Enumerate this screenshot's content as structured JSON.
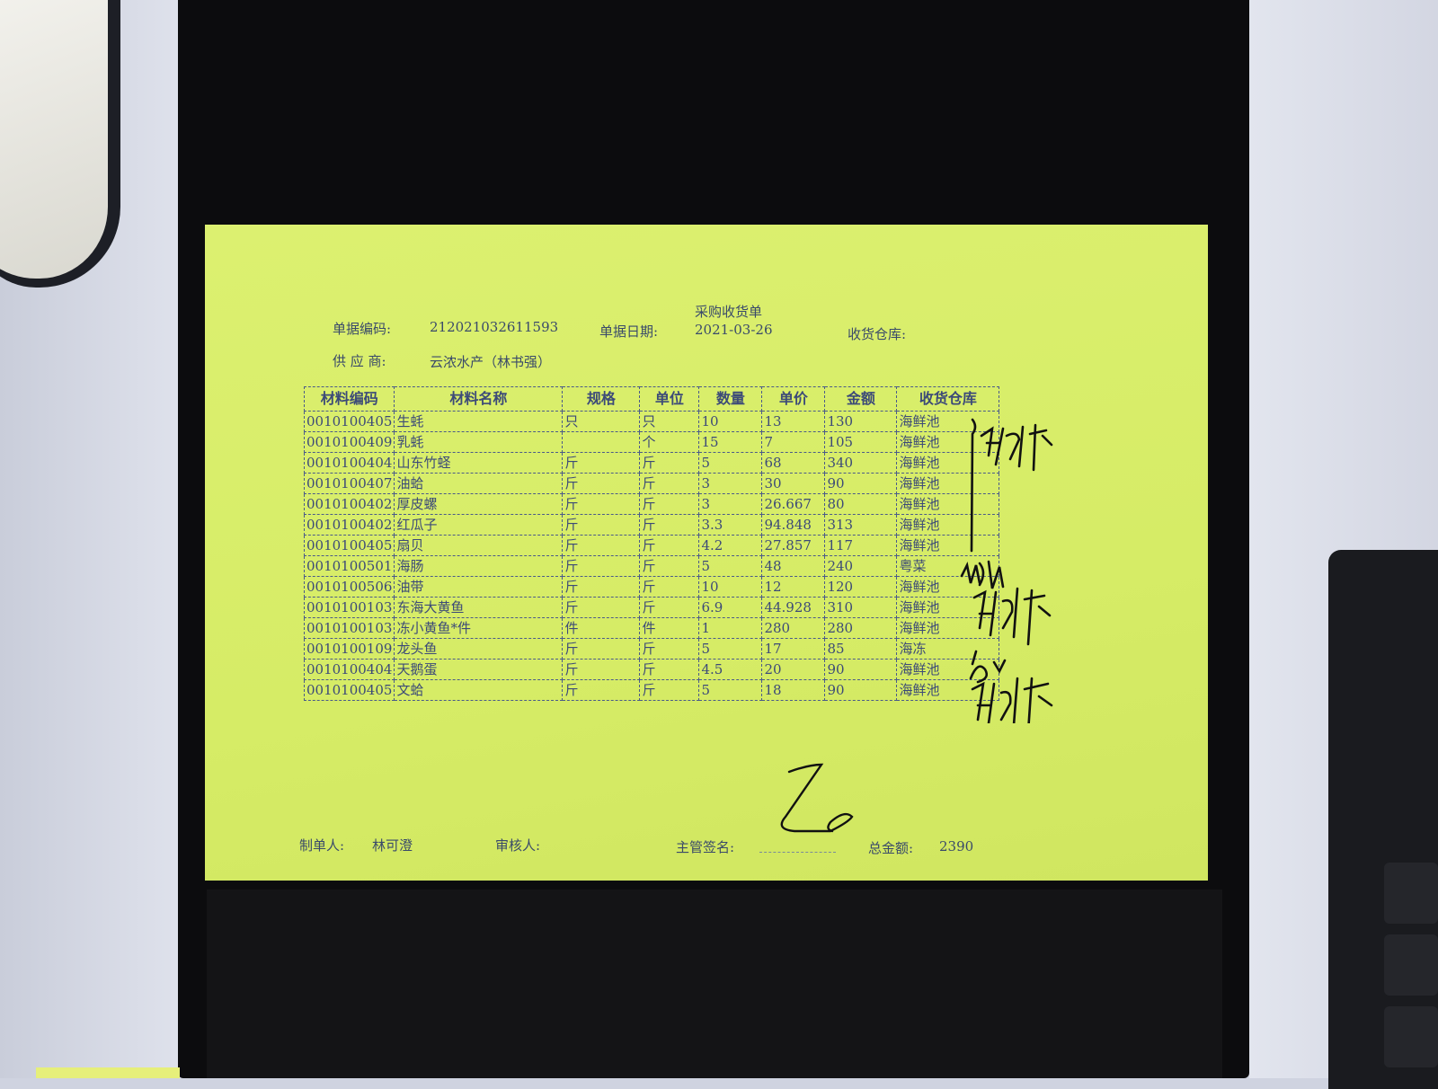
{
  "document": {
    "title": "采购收货单",
    "doc_no_label": "单据编码:",
    "doc_no": "212021032611593",
    "date_label": "单据日期:",
    "date": "2021-03-26",
    "warehouse_label": "收货仓库:",
    "supplier_label": "供 应 商:",
    "supplier": "云浓水产（林书强）",
    "columns": [
      "材料编码",
      "材料名称",
      "规格",
      "单位",
      "数量",
      "单价",
      "金额",
      "收货仓库"
    ],
    "rows": [
      [
        "0010100405",
        "生蚝",
        "只",
        "只",
        "10",
        "13",
        "130",
        "海鲜池"
      ],
      [
        "0010100409",
        "乳蚝",
        "",
        "个",
        "15",
        "7",
        "105",
        "海鲜池"
      ],
      [
        "0010100404",
        "山东竹蛏",
        "斤",
        "斤",
        "5",
        "68",
        "340",
        "海鲜池"
      ],
      [
        "0010100407",
        "油蛤",
        "斤",
        "斤",
        "3",
        "30",
        "90",
        "海鲜池"
      ],
      [
        "0010100402",
        "厚皮螺",
        "斤",
        "斤",
        "3",
        "26.667",
        "80",
        "海鲜池"
      ],
      [
        "0010100402",
        "红瓜子",
        "斤",
        "斤",
        "3.3",
        "94.848",
        "313",
        "海鲜池"
      ],
      [
        "0010100405",
        "扇贝",
        "斤",
        "斤",
        "4.2",
        "27.857",
        "117",
        "海鲜池"
      ],
      [
        "0010100501",
        "海肠",
        "斤",
        "斤",
        "5",
        "48",
        "240",
        "粤菜"
      ],
      [
        "0010100506",
        "油带",
        "斤",
        "斤",
        "10",
        "12",
        "120",
        "海鲜池"
      ],
      [
        "0010100103",
        "东海大黄鱼",
        "斤",
        "斤",
        "6.9",
        "44.928",
        "310",
        "海鲜池"
      ],
      [
        "0010100103",
        "冻小黄鱼*件",
        "件",
        "件",
        "1",
        "280",
        "280",
        "海鲜池"
      ],
      [
        "0010100109",
        "龙头鱼",
        "斤",
        "斤",
        "5",
        "17",
        "85",
        "海冻"
      ],
      [
        "0010100404",
        "天鹅蛋",
        "斤",
        "斤",
        "4.5",
        "20",
        "90",
        "海鲜池"
      ],
      [
        "0010100405",
        "文蛤",
        "斤",
        "斤",
        "5",
        "18",
        "90",
        "海鲜池"
      ]
    ],
    "maker_label": "制单人:",
    "maker": "林可澄",
    "reviewer_label": "审核人:",
    "supervisor_label": "主管签名:",
    "total_label": "总金额:",
    "total": "2390"
  },
  "colors": {
    "paper": "#d8ee68",
    "ink": "#3c4a78",
    "background": "#0c0c0e"
  }
}
